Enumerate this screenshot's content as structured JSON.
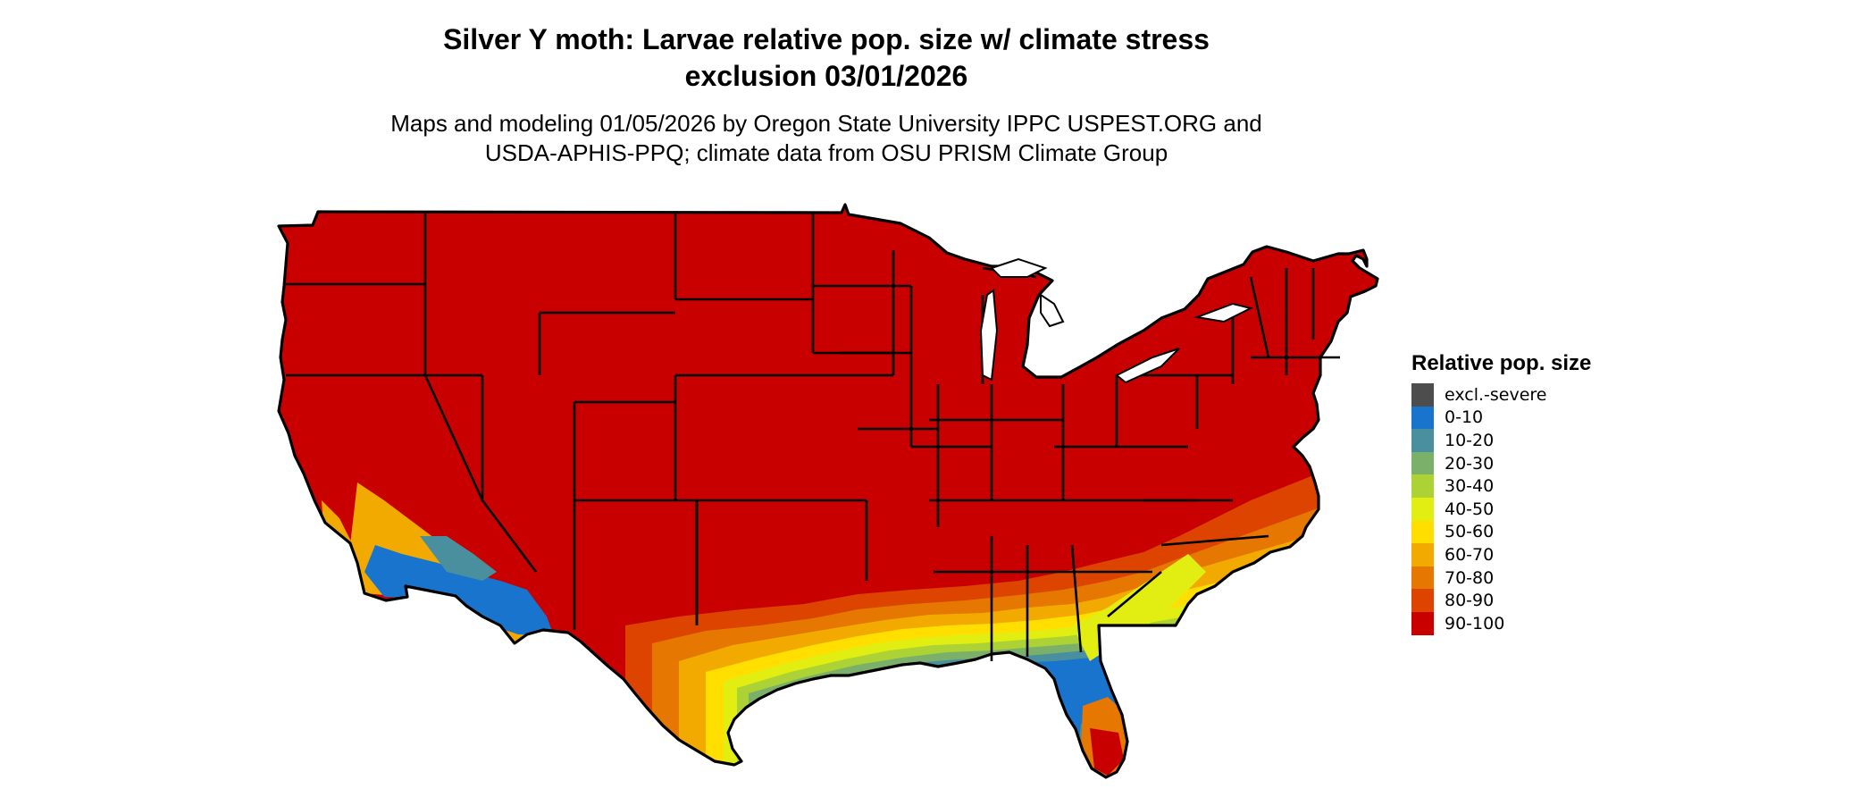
{
  "title": {
    "line1": "Silver Y moth: Larvae relative pop. size w/ climate stress",
    "line2": "exclusion 03/01/2026"
  },
  "subtitle": {
    "line1": "Maps and modeling 01/05/2026 by Oregon State University IPPC USPEST.ORG and",
    "line2": "USDA-APHIS-PPQ; climate data from OSU PRISM Climate Group"
  },
  "legend": {
    "title": "Relative pop. size",
    "items": [
      {
        "label": "excl.-severe",
        "color": "#4d4d4d"
      },
      {
        "label": "0-10",
        "color": "#1874cd"
      },
      {
        "label": "10-20",
        "color": "#4a8f9e"
      },
      {
        "label": "20-30",
        "color": "#7ab06a"
      },
      {
        "label": "30-40",
        "color": "#acd235"
      },
      {
        "label": "40-50",
        "color": "#e2ee12"
      },
      {
        "label": "50-60",
        "color": "#ffde00"
      },
      {
        "label": "60-70",
        "color": "#f3aa00"
      },
      {
        "label": "70-80",
        "color": "#e67700"
      },
      {
        "label": "80-90",
        "color": "#dc4400"
      },
      {
        "label": "90-100",
        "color": "#c80000"
      }
    ]
  },
  "map": {
    "dominant_class": "90-100",
    "region": "Conterminous United States"
  }
}
